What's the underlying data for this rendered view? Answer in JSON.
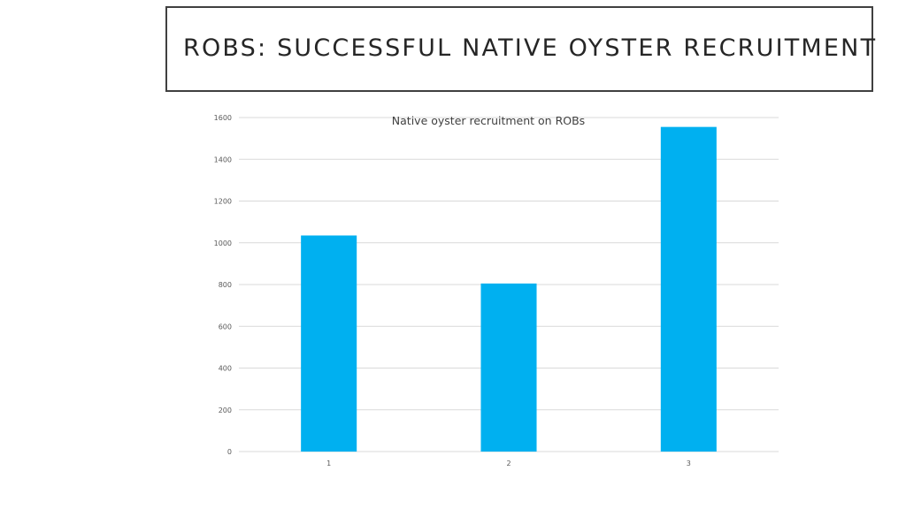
{
  "slide": {
    "title": "ROBS: SUCCESSFUL NATIVE OYSTER RECRUITMENT"
  },
  "chart_data": {
    "type": "bar",
    "title": "Native oyster recruitment on ROBs",
    "xlabel": "",
    "ylabel": "",
    "categories": [
      "1",
      "2",
      "3"
    ],
    "values": [
      1035,
      805,
      1555
    ],
    "ylim": [
      0,
      1600
    ],
    "yticks": [
      0,
      200,
      400,
      600,
      800,
      1000,
      1200,
      1400,
      1600
    ],
    "grid": true,
    "legend": "none",
    "colors": {
      "bar": "#00b0f0",
      "grid": "#d9d9d9",
      "tick_text": "#595959",
      "title_text": "#404040"
    }
  }
}
